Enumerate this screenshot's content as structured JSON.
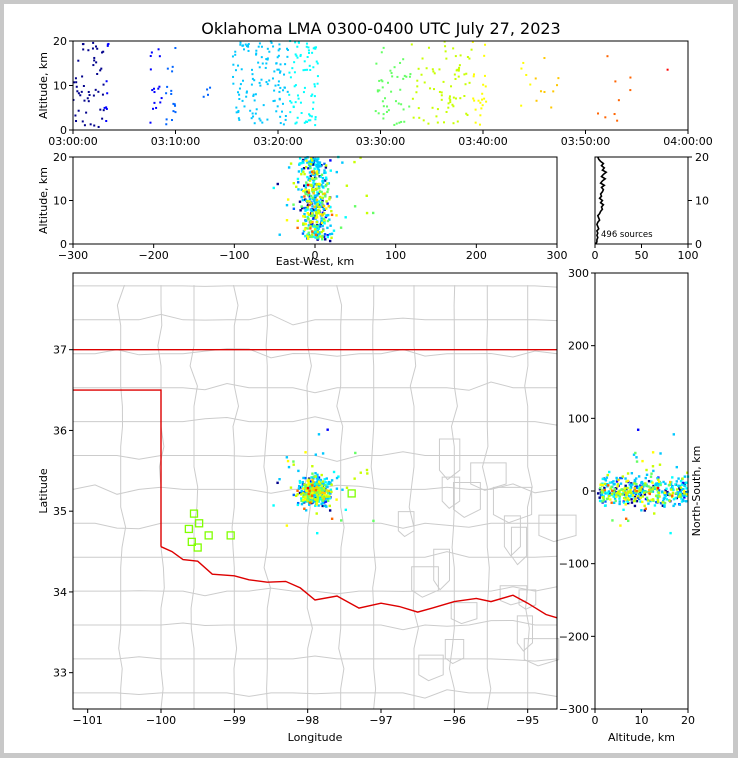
{
  "chart_data": [
    {
      "type": "scatter",
      "panel": "altitude-vs-time",
      "title": "Oklahoma LMA 0300-0400 UTC July 27, 2023",
      "xlabel": "",
      "ylabel": "Altitude, km",
      "x_ticks": [
        "03:00:00",
        "03:10:00",
        "03:20:00",
        "03:30:00",
        "03:40:00",
        "03:50:00",
        "04:00:00"
      ],
      "x_tick_minutes": [
        0,
        10,
        20,
        30,
        40,
        50,
        60
      ],
      "xlim_minutes": [
        0,
        60
      ],
      "y_ticks": [
        "0",
        "10",
        "20"
      ],
      "ylim": [
        0,
        20
      ],
      "colormap": "time (blue to red)",
      "clusters": [
        {
          "t": [
            0,
            3.5
          ],
          "z": [
            0.5,
            20
          ],
          "n": 60
        },
        {
          "t": [
            7.5,
            10
          ],
          "z": [
            1,
            19
          ],
          "n": 32
        },
        {
          "t": [
            12.5,
            13.5
          ],
          "z": [
            7,
            15
          ],
          "n": 4
        },
        {
          "t": [
            15.5,
            24
          ],
          "z": [
            1,
            20
          ],
          "n": 200
        },
        {
          "t": [
            29.5,
            40.5
          ],
          "z": [
            1,
            20
          ],
          "n": 140
        },
        {
          "t": [
            43,
            47.5
          ],
          "z": [
            5,
            18
          ],
          "n": 14
        },
        {
          "t": [
            51,
            54.5
          ],
          "z": [
            2,
            19
          ],
          "n": 9
        },
        {
          "t": [
            58,
            58.5
          ],
          "z": [
            13.5,
            14
          ],
          "n": 1
        }
      ]
    },
    {
      "type": "scatter",
      "panel": "altitude-vs-east-west",
      "xlabel": "East-West, km",
      "ylabel": "Altitude, km",
      "x_ticks": [
        "−300",
        "−200",
        "−100",
        "0",
        "100",
        "200",
        "300"
      ],
      "x_tick_values": [
        -300,
        -200,
        -100,
        0,
        100,
        200,
        300
      ],
      "xlim": [
        -300,
        300
      ],
      "y_ticks": [
        "0",
        "10",
        "20"
      ],
      "ylim": [
        0,
        20
      ]
    },
    {
      "type": "line",
      "panel": "source-altitude-histogram",
      "x_ticks": [
        "0",
        "50",
        "100"
      ],
      "xlim": [
        0,
        100
      ],
      "y_ticks": [
        "0",
        "10",
        "20"
      ],
      "ylim": [
        0,
        20
      ],
      "annotation": "496 sources",
      "total_sources": 496,
      "profile": [
        [
          1,
          0
        ],
        [
          2,
          0.5
        ],
        [
          2,
          1
        ],
        [
          3,
          1.5
        ],
        [
          2,
          2
        ],
        [
          3,
          2.5
        ],
        [
          2,
          3
        ],
        [
          4,
          3.5
        ],
        [
          3,
          4
        ],
        [
          2,
          4.5
        ],
        [
          3,
          5
        ],
        [
          5,
          5.5
        ],
        [
          4,
          6
        ],
        [
          3,
          6.5
        ],
        [
          5,
          7
        ],
        [
          6,
          7.5
        ],
        [
          8,
          8
        ],
        [
          7,
          8.5
        ],
        [
          9,
          9
        ],
        [
          6,
          9.5
        ],
        [
          8,
          10
        ],
        [
          5,
          10.5
        ],
        [
          7,
          11
        ],
        [
          6,
          11.5
        ],
        [
          8,
          12
        ],
        [
          9,
          12.5
        ],
        [
          7,
          13
        ],
        [
          10,
          13.5
        ],
        [
          6,
          14
        ],
        [
          8,
          14.5
        ],
        [
          11,
          15
        ],
        [
          7,
          15.5
        ],
        [
          9,
          16
        ],
        [
          12,
          16.5
        ],
        [
          8,
          17
        ],
        [
          10,
          17.5
        ],
        [
          7,
          18
        ],
        [
          9,
          18.5
        ],
        [
          6,
          19
        ],
        [
          4,
          19.5
        ],
        [
          3,
          20
        ]
      ]
    },
    {
      "type": "scatter",
      "panel": "plan-view-map",
      "xlabel": "Longitude",
      "ylabel": "Latitude",
      "x_ticks": [
        "−101",
        "−100",
        "−99",
        "−98",
        "−97",
        "−96",
        "−95"
      ],
      "x_tick_values": [
        -101,
        -100,
        -99,
        -98,
        -97,
        -96,
        -95
      ],
      "xlim": [
        -101.2,
        -94.6
      ],
      "y_ticks": [
        "33",
        "34",
        "35",
        "36",
        "37"
      ],
      "y_tick_values": [
        33,
        34,
        35,
        36,
        37
      ],
      "ylim": [
        32.55,
        37.95
      ],
      "state_border_color": "#dd0000",
      "county_border_color": "#cccccc",
      "center": [
        -97.9,
        35.25
      ],
      "stations": [
        [
          -99.55,
          34.97
        ],
        [
          -99.62,
          34.78
        ],
        [
          -99.48,
          34.85
        ],
        [
          -99.35,
          34.7
        ],
        [
          -99.05,
          34.7
        ],
        [
          -99.58,
          34.62
        ],
        [
          -99.5,
          34.55
        ],
        [
          -97.4,
          35.22
        ]
      ]
    },
    {
      "type": "scatter",
      "panel": "north-south-vs-altitude",
      "xlabel": "Altitude, km",
      "ylabel": "North-South, km",
      "x_ticks": [
        "0",
        "10",
        "20"
      ],
      "xlim": [
        0,
        20
      ],
      "y_ticks": [
        "−300",
        "−200",
        "−100",
        "0",
        "100",
        "200",
        "300"
      ],
      "y_tick_values": [
        -300,
        -200,
        -100,
        0,
        100,
        200,
        300
      ],
      "ylim": [
        -300,
        300
      ]
    }
  ],
  "colors": {
    "time_scale": [
      "#00008b",
      "#0000ff",
      "#0064ff",
      "#00c8ff",
      "#00ffff",
      "#64ff64",
      "#c8ff00",
      "#ffff00",
      "#ffc800",
      "#ff6400",
      "#ff0000"
    ],
    "station": "#80ff00"
  }
}
